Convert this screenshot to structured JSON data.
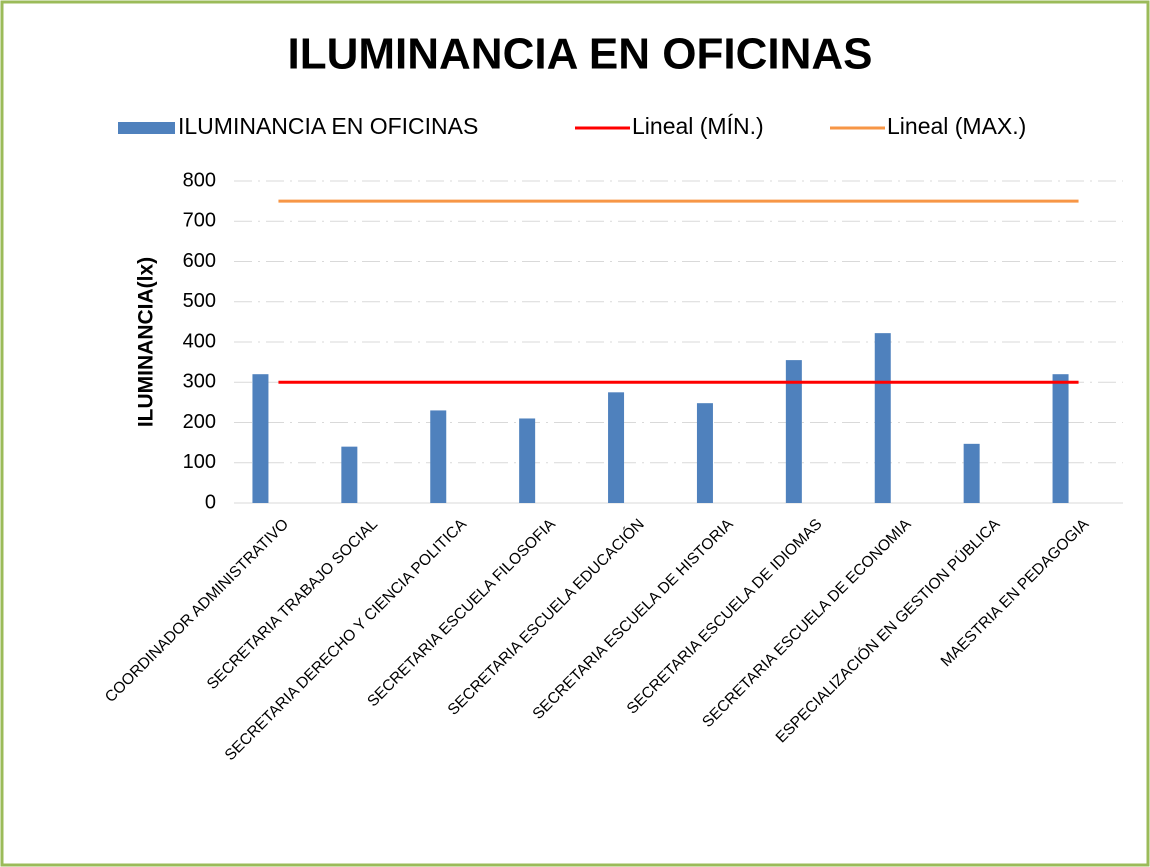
{
  "chart_data": {
    "type": "bar",
    "title": "ILUMINANCIA EN OFICINAS",
    "y_label": "ILUMINANCIA(lx)",
    "categories": [
      "COORDINADOR ADMINISTRATIVO",
      "SECRETARIA TRABAJO SOCIAL",
      "SECRETARIA DERECHO Y CIENCIA POLITICA",
      "SECRETARIA ESCUELA FILOSOFIA",
      "SECRETARIA ESCUELA EDUCACIÓN",
      "SECRETARIA ESCUELA DE HISTORIA",
      "SECRETARIA ESCUELA DE IDIOMAS",
      "SECRETARIA ESCUELA DE ECONOMIA",
      "ESPECIALIZACIÓN EN GESTION PÚBLICA",
      "MAESTRIA EN PEDAGOGIA"
    ],
    "series": [
      {
        "name": "ILUMINANCIA EN OFICINAS",
        "type": "bar",
        "color": "#4f81bd",
        "values": [
          320,
          140,
          230,
          210,
          275,
          248,
          355,
          422,
          147,
          320
        ]
      },
      {
        "name": "Lineal (MÍN.)",
        "type": "line",
        "color": "#ff0000",
        "values": [
          300,
          300,
          300,
          300,
          300,
          300,
          300,
          300,
          300,
          300
        ]
      },
      {
        "name": "Lineal (MAX.)",
        "type": "line",
        "color": "#f79646",
        "values": [
          750,
          750,
          750,
          750,
          750,
          750,
          750,
          750,
          750,
          750
        ]
      }
    ],
    "ylim": [
      0,
      800
    ],
    "yticks": [
      0,
      100,
      200,
      300,
      400,
      500,
      600,
      700,
      800
    ],
    "grid": true,
    "legend": "top"
  }
}
